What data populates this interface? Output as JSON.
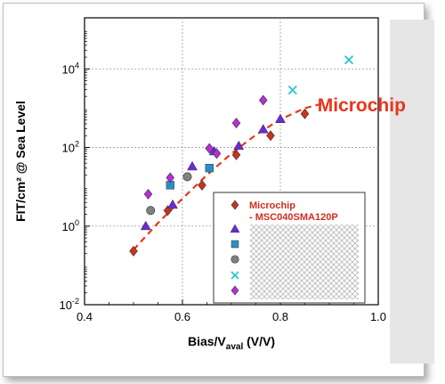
{
  "chart_data": {
    "type": "scatter",
    "xlabel_main": "Bias/V",
    "xlabel_sub": "aval",
    "xlabel_unit": " (V/V)",
    "ylabel": "FIT/cm² @ Sea Level",
    "xlim": [
      0.4,
      1.0
    ],
    "ylim_log10": [
      -2,
      5.3
    ],
    "x_ticks": [
      {
        "value": 0.4,
        "label": "0.4"
      },
      {
        "value": 0.6,
        "label": "0.6"
      },
      {
        "value": 0.8,
        "label": "0.8"
      },
      {
        "value": 1.0,
        "label": "1.0"
      }
    ],
    "y_ticks": [
      {
        "value": 0.01,
        "base": "10",
        "exp": "-2"
      },
      {
        "value": 1,
        "base": "10",
        "exp": "0"
      },
      {
        "value": 100,
        "base": "10",
        "exp": "2"
      },
      {
        "value": 10000,
        "base": "10",
        "exp": "4"
      }
    ],
    "grid": true,
    "log_y": true,
    "annotation": {
      "text": "Microchip",
      "color": "#e8361c",
      "x": 0.885,
      "y": 1250
    },
    "legend": {
      "placement": "bottom-right",
      "entries": [
        {
          "marker": "diamond",
          "color": "#c8331e",
          "label_lines": [
            "Microchip",
            "- MSC040SMA120P"
          ]
        },
        {
          "marker": "triangle",
          "color": "#6a2bd6",
          "label_lines": []
        },
        {
          "marker": "square",
          "color": "#2a8fc6",
          "label_lines": []
        },
        {
          "marker": "circle",
          "color": "#808080",
          "label_lines": []
        },
        {
          "marker": "x",
          "color": "#28c4cf",
          "label_lines": []
        },
        {
          "marker": "diamond",
          "color": "#b42fd8",
          "label_lines": []
        }
      ],
      "label_color": "#d22d1e"
    },
    "series": [
      {
        "marker": "diamond",
        "color": "#c8331e",
        "points": [
          [
            0.5,
            0.23
          ],
          [
            0.57,
            2.5
          ],
          [
            0.64,
            11
          ],
          [
            0.71,
            65
          ],
          [
            0.78,
            200
          ],
          [
            0.85,
            720
          ]
        ]
      },
      {
        "marker": "triangle",
        "color": "#6a2bd6",
        "points": [
          [
            0.525,
            1.0
          ],
          [
            0.58,
            3.5
          ],
          [
            0.62,
            33
          ],
          [
            0.665,
            80
          ],
          [
            0.715,
            110
          ],
          [
            0.765,
            290
          ],
          [
            0.8,
            530
          ]
        ]
      },
      {
        "marker": "square",
        "color": "#2a8fc6",
        "points": [
          [
            0.575,
            11
          ],
          [
            0.655,
            30
          ]
        ]
      },
      {
        "marker": "circle",
        "color": "#808080",
        "points": [
          [
            0.535,
            2.5
          ],
          [
            0.61,
            18
          ]
        ]
      },
      {
        "marker": "x",
        "color": "#28c4cf",
        "points": [
          [
            0.825,
            2900
          ],
          [
            0.94,
            17000
          ]
        ]
      },
      {
        "marker": "diamond",
        "color": "#b42fd8",
        "points": [
          [
            0.53,
            6.5
          ],
          [
            0.575,
            17
          ],
          [
            0.655,
            95
          ],
          [
            0.67,
            70
          ],
          [
            0.71,
            420
          ],
          [
            0.765,
            1600
          ]
        ]
      }
    ],
    "trend": {
      "color": "#e8361c",
      "points": [
        [
          0.5,
          0.25
        ],
        [
          0.55,
          1.2
        ],
        [
          0.6,
          5
        ],
        [
          0.65,
          20
        ],
        [
          0.7,
          70
        ],
        [
          0.75,
          210
        ],
        [
          0.8,
          520
        ],
        [
          0.85,
          1000
        ],
        [
          0.89,
          1350
        ]
      ]
    }
  }
}
